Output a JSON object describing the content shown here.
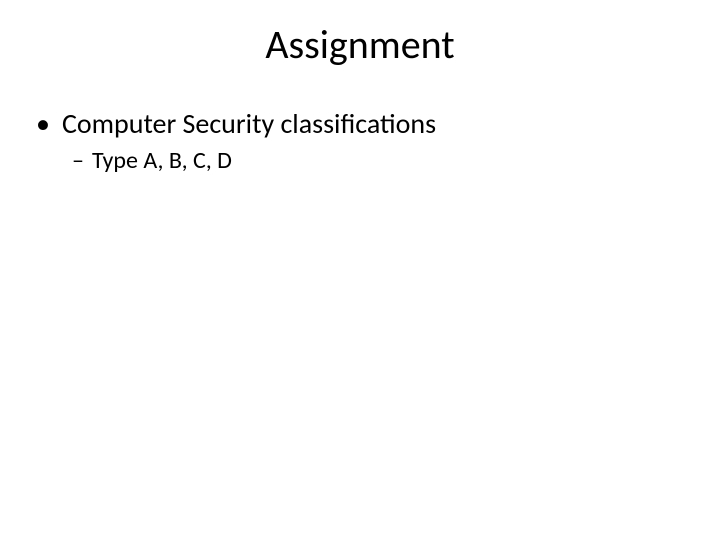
{
  "slide": {
    "title": "Assignment",
    "bullets": {
      "level1_text": "Computer Security classifications",
      "level1_marker": "•",
      "level2_text": "Type A, B, C, D",
      "level2_marker": "–"
    }
  },
  "style": {
    "background_color": "#ffffff",
    "text_color": "#000000",
    "title_fontsize": 40,
    "level1_fontsize": 28,
    "level2_fontsize": 24,
    "font_family": "Calibri"
  }
}
